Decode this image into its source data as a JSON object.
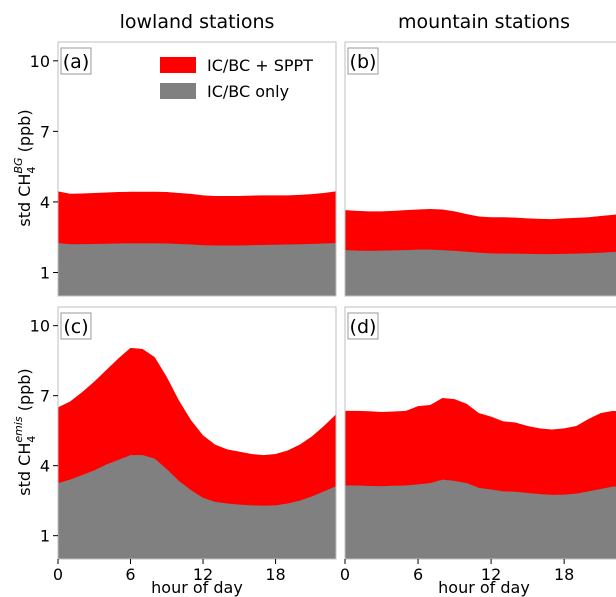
{
  "figure": {
    "col_titles": [
      "lowland stations",
      "mountain stations"
    ],
    "ylabel_top": {
      "pre": "std CH",
      "sub": "4",
      "sup": "BG",
      "post": " (ppb)"
    },
    "ylabel_bottom": {
      "pre": "std CH",
      "sub": "4",
      "sup": "emis",
      "post": " (ppb)"
    },
    "xlabel": "hour of day",
    "legend": [
      {
        "label": "IC/BC + SPPT",
        "color": "#ff0000"
      },
      {
        "label": "IC/BC only",
        "color": "#808080"
      }
    ]
  },
  "chart_data": [
    {
      "type": "area",
      "panel_label": "(a)",
      "x": [
        0,
        1,
        2,
        3,
        4,
        5,
        6,
        7,
        8,
        9,
        10,
        11,
        12,
        13,
        14,
        15,
        16,
        17,
        18,
        19,
        20,
        21,
        22,
        23
      ],
      "xlim": [
        0,
        23
      ],
      "ylim": [
        0,
        10.8
      ],
      "xticks": [
        0,
        6,
        12,
        18
      ],
      "yticks": [
        1,
        4,
        7,
        10
      ],
      "series": [
        {
          "name": "IC/BC + SPPT",
          "color": "#ff0000",
          "values": [
            4.45,
            4.35,
            4.36,
            4.38,
            4.4,
            4.42,
            4.43,
            4.43,
            4.43,
            4.42,
            4.38,
            4.34,
            4.28,
            4.25,
            4.25,
            4.25,
            4.27,
            4.28,
            4.28,
            4.28,
            4.3,
            4.33,
            4.38,
            4.45
          ]
        },
        {
          "name": "IC/BC only",
          "color": "#808080",
          "values": [
            2.25,
            2.2,
            2.2,
            2.21,
            2.22,
            2.23,
            2.24,
            2.24,
            2.24,
            2.23,
            2.21,
            2.19,
            2.16,
            2.15,
            2.15,
            2.15,
            2.16,
            2.17,
            2.18,
            2.19,
            2.2,
            2.21,
            2.23,
            2.25
          ]
        }
      ]
    },
    {
      "type": "area",
      "panel_label": "(b)",
      "x": [
        0,
        1,
        2,
        3,
        4,
        5,
        6,
        7,
        8,
        9,
        10,
        11,
        12,
        13,
        14,
        15,
        16,
        17,
        18,
        19,
        20,
        21,
        22,
        23
      ],
      "xlim": [
        0,
        23
      ],
      "ylim": [
        0,
        10.8
      ],
      "xticks": [
        0,
        6,
        12,
        18
      ],
      "yticks": [
        1,
        4,
        7,
        10
      ],
      "series": [
        {
          "name": "IC/BC + SPPT",
          "color": "#ff0000",
          "values": [
            3.65,
            3.62,
            3.6,
            3.6,
            3.62,
            3.65,
            3.68,
            3.7,
            3.68,
            3.6,
            3.48,
            3.38,
            3.35,
            3.35,
            3.33,
            3.3,
            3.28,
            3.27,
            3.3,
            3.32,
            3.35,
            3.4,
            3.45,
            3.5
          ]
        },
        {
          "name": "IC/BC only",
          "color": "#808080",
          "values": [
            1.95,
            1.93,
            1.92,
            1.93,
            1.94,
            1.95,
            1.97,
            1.97,
            1.95,
            1.92,
            1.88,
            1.84,
            1.81,
            1.8,
            1.8,
            1.79,
            1.78,
            1.78,
            1.79,
            1.8,
            1.82,
            1.84,
            1.87,
            1.9
          ]
        }
      ]
    },
    {
      "type": "area",
      "panel_label": "(c)",
      "x": [
        0,
        1,
        2,
        3,
        4,
        5,
        6,
        7,
        8,
        9,
        10,
        11,
        12,
        13,
        14,
        15,
        16,
        17,
        18,
        19,
        20,
        21,
        22,
        23
      ],
      "xlim": [
        0,
        23
      ],
      "ylim": [
        0,
        10.8
      ],
      "xticks": [
        0,
        6,
        12,
        18
      ],
      "yticks": [
        1,
        4,
        7,
        10
      ],
      "series": [
        {
          "name": "IC/BC + SPPT",
          "color": "#ff0000",
          "values": [
            6.5,
            6.75,
            7.15,
            7.6,
            8.1,
            8.6,
            9.05,
            9.0,
            8.65,
            7.8,
            6.8,
            5.95,
            5.3,
            4.9,
            4.7,
            4.6,
            4.5,
            4.45,
            4.5,
            4.65,
            4.9,
            5.25,
            5.7,
            6.2
          ]
        },
        {
          "name": "IC/BC only",
          "color": "#808080",
          "values": [
            3.25,
            3.4,
            3.6,
            3.8,
            4.05,
            4.25,
            4.45,
            4.45,
            4.3,
            3.85,
            3.35,
            2.95,
            2.62,
            2.45,
            2.38,
            2.33,
            2.3,
            2.28,
            2.3,
            2.38,
            2.5,
            2.68,
            2.9,
            3.12
          ]
        }
      ]
    },
    {
      "type": "area",
      "panel_label": "(d)",
      "x": [
        0,
        1,
        2,
        3,
        4,
        5,
        6,
        7,
        8,
        9,
        10,
        11,
        12,
        13,
        14,
        15,
        16,
        17,
        18,
        19,
        20,
        21,
        22,
        23
      ],
      "xlim": [
        0,
        23
      ],
      "ylim": [
        0,
        10.8
      ],
      "xticks": [
        0,
        6,
        12,
        18
      ],
      "yticks": [
        1,
        4,
        7,
        10
      ],
      "series": [
        {
          "name": "IC/BC + SPPT",
          "color": "#ff0000",
          "values": [
            6.35,
            6.35,
            6.33,
            6.3,
            6.32,
            6.35,
            6.55,
            6.6,
            6.9,
            6.85,
            6.65,
            6.25,
            6.1,
            5.9,
            5.85,
            5.7,
            5.6,
            5.55,
            5.6,
            5.7,
            6.0,
            6.25,
            6.35,
            6.3
          ]
        },
        {
          "name": "IC/BC only",
          "color": "#808080",
          "values": [
            3.15,
            3.15,
            3.13,
            3.12,
            3.14,
            3.15,
            3.2,
            3.25,
            3.4,
            3.35,
            3.25,
            3.05,
            2.98,
            2.9,
            2.88,
            2.83,
            2.78,
            2.75,
            2.76,
            2.8,
            2.9,
            3.0,
            3.1,
            3.12
          ]
        }
      ]
    }
  ]
}
